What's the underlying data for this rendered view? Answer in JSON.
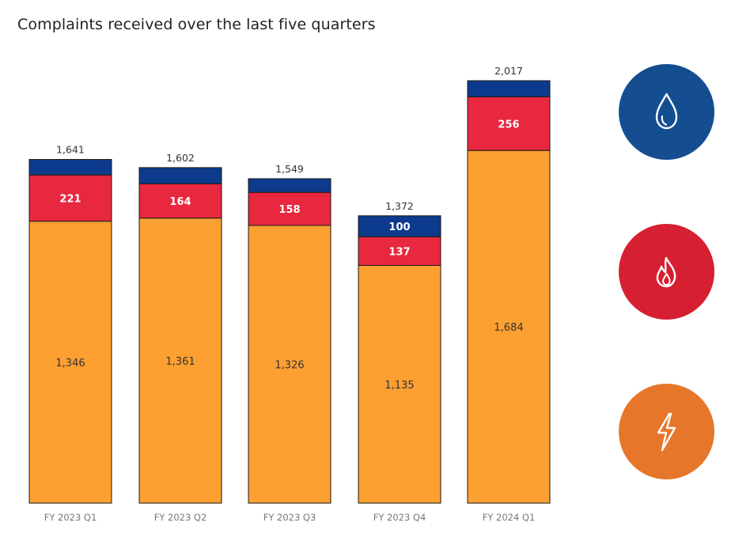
{
  "title": "Complaints received over the last five quarters",
  "legend_icons": [
    {
      "name": "water-drop-icon",
      "color": "#144e91"
    },
    {
      "name": "gas-flame-icon",
      "color": "#d71f32"
    },
    {
      "name": "electricity-bolt-icon",
      "color": "#e6762a"
    }
  ],
  "chart_data": {
    "type": "bar",
    "stacked": true,
    "title": "Complaints received over the last five quarters",
    "categories": [
      "FY 2023 Q1",
      "FY 2023 Q2",
      "FY 2023 Q3",
      "FY 2023 Q4",
      "FY 2024 Q1"
    ],
    "series": [
      {
        "color": "#fca032",
        "values": [
          1346,
          1361,
          1326,
          1135,
          1684
        ],
        "labels": [
          "1,346",
          "1,361",
          "1,326",
          "1,135",
          "1,684"
        ]
      },
      {
        "color": "#e8283f",
        "values": [
          221,
          164,
          158,
          137,
          256
        ],
        "labels": [
          "221",
          "164",
          "158",
          "137",
          "256"
        ]
      },
      {
        "color": "#0c3a8c",
        "values": [
          74,
          77,
          65,
          100,
          77
        ],
        "labels": [
          "",
          "",
          "",
          "100",
          ""
        ]
      }
    ],
    "totals": [
      1641,
      1602,
      1549,
      1372,
      2017
    ],
    "total_labels": [
      "1,641",
      "1,602",
      "1,549",
      "1,372",
      "2,017"
    ],
    "xlabel": "",
    "ylabel": "",
    "ylim": [
      0,
      2017
    ],
    "grid": false
  }
}
